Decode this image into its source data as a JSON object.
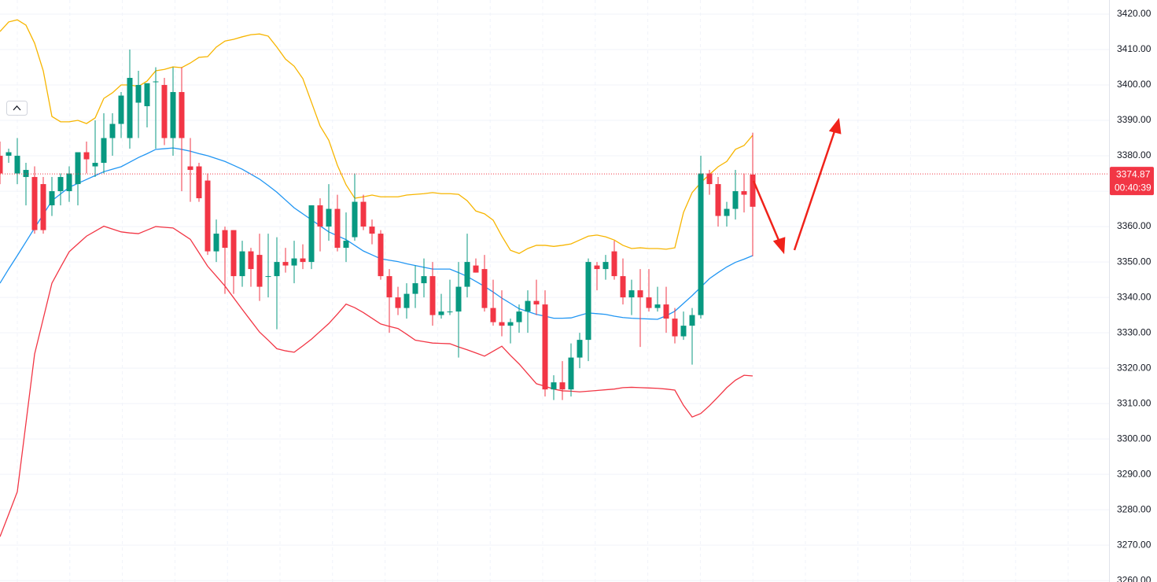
{
  "chart_data": {
    "type": "candlestick",
    "ylim": [
      3259.6,
      3424
    ],
    "yticks": [
      {
        "value": 3260,
        "label": "3260.00"
      },
      {
        "value": 3270,
        "label": "3270.00"
      },
      {
        "value": 3280,
        "label": "3280.00"
      },
      {
        "value": 3290,
        "label": "3290.00"
      },
      {
        "value": 3300,
        "label": "3300.00"
      },
      {
        "value": 3310,
        "label": "3310.00"
      },
      {
        "value": 3320,
        "label": "3320.00"
      },
      {
        "value": 3330,
        "label": "3330.00"
      },
      {
        "value": 3340,
        "label": "3340.00"
      },
      {
        "value": 3350,
        "label": "3350.00"
      },
      {
        "value": 3360,
        "label": "3360.00"
      },
      {
        "value": 3370,
        "label": "3370.00"
      },
      {
        "value": 3380,
        "label": "3380.00"
      },
      {
        "value": 3390,
        "label": "3390.00"
      },
      {
        "value": 3400,
        "label": "3400.00"
      },
      {
        "value": 3410,
        "label": "3410.00"
      },
      {
        "value": 3420,
        "label": "3420.00"
      }
    ],
    "grid": true,
    "up_color": "#089981",
    "down_color": "#f23645",
    "last_price": 3374.87,
    "countdown": "00:40:39",
    "candles": [
      [
        3380,
        3384,
        3372,
        3375
      ],
      [
        3380,
        3382,
        3378,
        3381
      ],
      [
        3375,
        3385,
        3372,
        3380
      ],
      [
        3374,
        3378,
        3366,
        3376
      ],
      [
        3374,
        3377,
        3358,
        3359
      ],
      [
        3372,
        3374,
        3358,
        3359
      ],
      [
        3366,
        3374,
        3363,
        3370
      ],
      [
        3370,
        3375,
        3366,
        3374
      ],
      [
        3370,
        3377,
        3367,
        3375
      ],
      [
        3372,
        3380,
        3366,
        3381
      ],
      [
        3381,
        3384,
        3375,
        3379
      ],
      [
        3377,
        3390,
        3374,
        3378
      ],
      [
        3378,
        3392,
        3375,
        3385
      ],
      [
        3385,
        3392,
        3380,
        3389
      ],
      [
        3389,
        3398,
        3385,
        3397
      ],
      [
        3385,
        3410,
        3382,
        3402
      ],
      [
        3395,
        3404,
        3385,
        3400
      ],
      [
        3394,
        3400,
        3388,
        3400.5
      ],
      [
        3401,
        3405,
        3382,
        3401
      ],
      [
        3400,
        3402,
        3383,
        3385
      ],
      [
        3385,
        3405,
        3380,
        3398
      ],
      [
        3398,
        3405,
        3370,
        3385
      ],
      [
        3377,
        3385,
        3367,
        3376
      ],
      [
        3377,
        3378,
        3367,
        3368
      ],
      [
        3373,
        3375,
        3352,
        3353
      ],
      [
        3353,
        3362,
        3350,
        3358
      ],
      [
        3359,
        3360,
        3341,
        3354
      ],
      [
        3359,
        3359,
        3341,
        3346
      ],
      [
        3346,
        3356,
        3343,
        3353
      ],
      [
        3353,
        3354,
        3343,
        3348
      ],
      [
        3352,
        3358,
        3339,
        3343
      ],
      [
        3346,
        3358,
        3340,
        3346
      ],
      [
        3346,
        3357,
        3331,
        3350
      ],
      [
        3350,
        3354,
        3347,
        3349
      ],
      [
        3349,
        3356,
        3344,
        3351
      ],
      [
        3351,
        3355,
        3348,
        3350
      ],
      [
        3350,
        3366,
        3348,
        3366
      ],
      [
        3366,
        3368,
        3353,
        3360
      ],
      [
        3360,
        3372,
        3356,
        3365
      ],
      [
        3365,
        3369,
        3353,
        3354
      ],
      [
        3354,
        3364,
        3350,
        3356
      ],
      [
        3357,
        3375,
        3356,
        3367
      ],
      [
        3367,
        3369,
        3359,
        3360
      ],
      [
        3360,
        3362,
        3355,
        3358
      ],
      [
        3358,
        3359,
        3345,
        3346
      ],
      [
        3346,
        3348,
        3330,
        3340
      ],
      [
        3340,
        3343,
        3335,
        3337
      ],
      [
        3337,
        3344,
        3334,
        3341
      ],
      [
        3341,
        3349,
        3337,
        3344
      ],
      [
        3344,
        3351,
        3340,
        3346
      ],
      [
        3346,
        3350,
        3332,
        3335
      ],
      [
        3335,
        3341,
        3334,
        3336
      ],
      [
        3336,
        3345,
        3335,
        3336
      ],
      [
        3336,
        3350,
        3323,
        3343
      ],
      [
        3343,
        3358,
        3340,
        3350
      ],
      [
        3349,
        3351,
        3347,
        3347
      ],
      [
        3348,
        3352,
        3336,
        3337
      ],
      [
        3337,
        3345,
        3332,
        3333
      ],
      [
        3333,
        3342,
        3329,
        3332
      ],
      [
        3332,
        3334,
        3327,
        3333
      ],
      [
        3333,
        3338,
        3330,
        3336
      ],
      [
        3336,
        3342,
        3330,
        3339
      ],
      [
        3339,
        3345,
        3335,
        3338
      ],
      [
        3338,
        3342,
        3312,
        3314
      ],
      [
        3314,
        3318,
        3311,
        3316
      ],
      [
        3316,
        3322,
        3311,
        3314
      ],
      [
        3314,
        3327,
        3312,
        3323
      ],
      [
        3323,
        3330,
        3320,
        3328
      ],
      [
        3328,
        3351,
        3322,
        3350
      ],
      [
        3349,
        3350,
        3342,
        3348
      ],
      [
        3348,
        3352,
        3345,
        3350
      ],
      [
        3353,
        3356,
        3345,
        3346
      ],
      [
        3346,
        3351,
        3338,
        3340
      ],
      [
        3340,
        3345,
        3335,
        3342
      ],
      [
        3342,
        3348,
        3326,
        3340
      ],
      [
        3340,
        3348,
        3336,
        3337
      ],
      [
        3337,
        3343,
        3336,
        3338
      ],
      [
        3338,
        3343,
        3330,
        3334
      ],
      [
        3334,
        3337,
        3327,
        3329
      ],
      [
        3329,
        3336,
        3328,
        3332
      ],
      [
        3332,
        3337,
        3321,
        3335
      ],
      [
        3335,
        3380,
        3334,
        3375
      ],
      [
        3375,
        3376,
        3369,
        3372
      ],
      [
        3372,
        3374,
        3360,
        3363
      ],
      [
        3363,
        3367,
        3360,
        3365
      ],
      [
        3365,
        3376,
        3362,
        3370
      ],
      [
        3370,
        3375,
        3364,
        3369
      ],
      [
        3374.7,
        3386.5,
        3351.6,
        3365.6
      ]
    ],
    "series": [
      {
        "color": "#f7b500",
        "values": [
          3415.1,
          3417.8,
          3418.4,
          3416.9,
          3411.8,
          3404,
          3391.1,
          3389.6,
          3389.6,
          3390,
          3389.1,
          3390.7,
          3396.2,
          3397.8,
          3400,
          3400,
          3399.6,
          3401.1,
          3404,
          3404.4,
          3405.1,
          3404.9,
          3406.2,
          3407.8,
          3408,
          3410.7,
          3412.4,
          3412.9,
          3413.6,
          3414.2,
          3414.4,
          3413.8,
          3410.7,
          3407.3,
          3405.3,
          3401.8,
          3395.1,
          3388.4,
          3384.4,
          3377.3,
          3371.8,
          3368,
          3368.4,
          3368.9,
          3368.4,
          3368.4,
          3368.4,
          3368.9,
          3369.1,
          3369.3,
          3369.6,
          3369.3,
          3369.3,
          3369.1,
          3367.3,
          3364.4,
          3363.6,
          3361.8,
          3357.3,
          3353.3,
          3352.4,
          3353.8,
          3354.7,
          3354.7,
          3354.4,
          3354.7,
          3355.1,
          3356.2,
          3357.3,
          3357.6,
          3357.1,
          3356.2,
          3354.7,
          3353.8,
          3354,
          3353.8,
          3353.8,
          3353.6,
          3354,
          3364,
          3369.6,
          3372.4,
          3374.7,
          3376.9,
          3378.4,
          3381.8,
          3382.9,
          3385.8
        ]
      },
      {
        "color": "#2196f3",
        "values": [
          3344,
          3348,
          3351.8,
          3355.7,
          3359.6,
          3363.4,
          3367.3,
          3369.2,
          3371.1,
          3372.2,
          3373.3,
          3374.4,
          3375.5,
          3376.2,
          3376.9,
          3378.2,
          3379.5,
          3380.6,
          3381.8,
          3382,
          3382.2,
          3381.8,
          3381.3,
          3380.6,
          3380,
          3379.2,
          3378.4,
          3377.3,
          3376.2,
          3374.8,
          3373.4,
          3371.6,
          3369.7,
          3367.5,
          3365.3,
          3363.6,
          3361.9,
          3360.2,
          3358.5,
          3357.4,
          3356.3,
          3354.7,
          3353.1,
          3352,
          3350.9,
          3350.5,
          3350.1,
          3349.5,
          3349,
          3348.5,
          3348,
          3348,
          3348,
          3347,
          3345.9,
          3344.5,
          3343.1,
          3341.5,
          3339.8,
          3338.3,
          3336.8,
          3336,
          3335.2,
          3334.7,
          3334.1,
          3334.1,
          3334.2,
          3334.9,
          3335.6,
          3335.4,
          3335.2,
          3334.7,
          3334.3,
          3334.1,
          3334,
          3333.9,
          3333.8,
          3334.8,
          3336.1,
          3338.3,
          3340.5,
          3342.9,
          3345.3,
          3347,
          3348.6,
          3349.9,
          3350.8,
          3351.8
        ]
      },
      {
        "color": "#f23645",
        "values": [
          3272.4,
          3278.7,
          3285.1,
          3304.5,
          3324,
          3334,
          3344,
          3348.5,
          3352.9,
          3355.1,
          3357.3,
          3358.7,
          3360.1,
          3359.3,
          3358.5,
          3358.2,
          3358,
          3359,
          3360,
          3359.8,
          3359.6,
          3358,
          3356.4,
          3352.6,
          3348.8,
          3346,
          3343.2,
          3339.9,
          3336.6,
          3333.4,
          3330.2,
          3327.9,
          3325.5,
          3324.9,
          3324.5,
          3326.3,
          3328.2,
          3330.4,
          3332.6,
          3335.3,
          3338.1,
          3337.1,
          3335.7,
          3334.1,
          3332.5,
          3331.8,
          3331.2,
          3329.6,
          3327.9,
          3327.5,
          3327.1,
          3327,
          3326.9,
          3326,
          3325.2,
          3324.3,
          3323.4,
          3324.8,
          3326.2,
          3323.6,
          3321.2,
          3318.4,
          3315.6,
          3314.9,
          3314.1,
          3313.6,
          3313.5,
          3313.3,
          3313.5,
          3313.7,
          3313.9,
          3314.1,
          3314.5,
          3314.6,
          3314.5,
          3314.4,
          3314.3,
          3314.1,
          3313.8,
          3309.5,
          3306.2,
          3307.2,
          3309.4,
          3311.9,
          3314.5,
          3316.6,
          3318,
          3317.8
        ]
      }
    ]
  }
}
